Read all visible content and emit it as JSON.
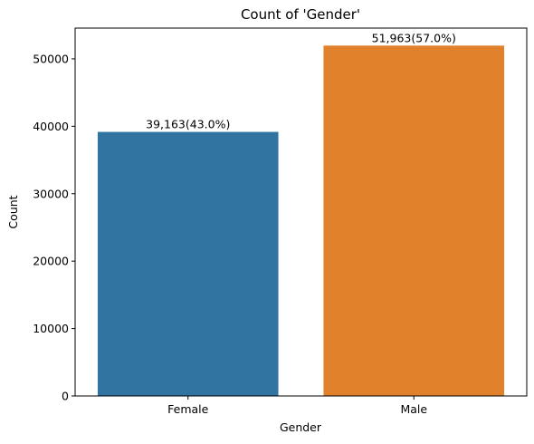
{
  "chart_data": {
    "type": "bar",
    "title": "Count of 'Gender'",
    "xlabel": "Gender",
    "ylabel": "Count",
    "categories": [
      "Female",
      "Male"
    ],
    "values": [
      39163,
      51963
    ],
    "data_labels": [
      "39,163(43.0%)",
      "51,963(57.0%)"
    ],
    "colors": [
      "#3274a1",
      "#e1812c"
    ],
    "ylim": [
      0,
      54560
    ],
    "yticks": [
      0,
      10000,
      20000,
      30000,
      40000,
      50000
    ],
    "ytick_labels": [
      "0",
      "10000",
      "20000",
      "30000",
      "40000",
      "50000"
    ],
    "grid": false,
    "legend": "none"
  }
}
